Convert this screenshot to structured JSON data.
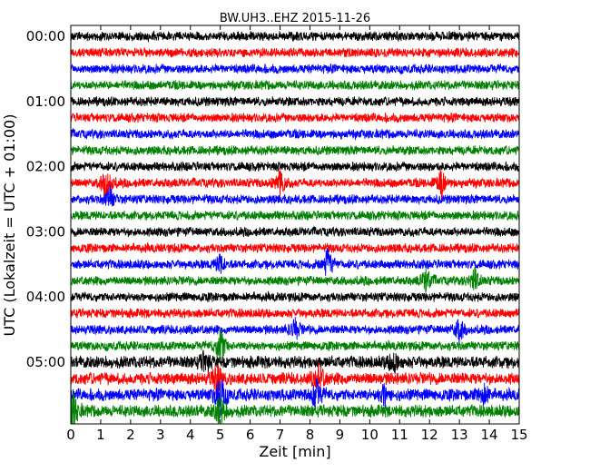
{
  "chart_data": {
    "type": "line",
    "title": "BW.UH3..EHZ 2015-11-26",
    "xlabel": "Zeit  [min]",
    "ylabel": "UTC (Lokalzeit = UTC + 01:00)",
    "xlim": [
      0,
      15
    ],
    "x_ticks": [
      "0",
      "1",
      "2",
      "3",
      "4",
      "5",
      "6",
      "7",
      "8",
      "9",
      "10",
      "11",
      "12",
      "13",
      "14",
      "15"
    ],
    "y_tick_labels": [
      "00:00",
      "01:00",
      "02:00",
      "03:00",
      "04:00",
      "05:00"
    ],
    "trace_minutes_per_line": 15,
    "trace_count": 24,
    "trace_colors": [
      "#000000",
      "#ff0000",
      "#0000ff",
      "#008000"
    ],
    "events": [
      {
        "trace": 9,
        "minute": 1.2,
        "amp": 3.5
      },
      {
        "trace": 9,
        "minute": 7.0,
        "amp": 2.5
      },
      {
        "trace": 9,
        "minute": 12.4,
        "amp": 2.5
      },
      {
        "trace": 10,
        "minute": 1.3,
        "amp": 2.0
      },
      {
        "trace": 14,
        "minute": 8.6,
        "amp": 3.0
      },
      {
        "trace": 14,
        "minute": 5.0,
        "amp": 1.8
      },
      {
        "trace": 15,
        "minute": 11.9,
        "amp": 2.5
      },
      {
        "trace": 15,
        "minute": 13.5,
        "amp": 2.2
      },
      {
        "trace": 18,
        "minute": 7.5,
        "amp": 2.0
      },
      {
        "trace": 18,
        "minute": 13.0,
        "amp": 2.2
      },
      {
        "trace": 19,
        "minute": 5.0,
        "amp": 3.5
      },
      {
        "trace": 20,
        "minute": 4.5,
        "amp": 2.0
      },
      {
        "trace": 20,
        "minute": 10.8,
        "amp": 2.0
      },
      {
        "trace": 21,
        "minute": 4.9,
        "amp": 2.5
      },
      {
        "trace": 21,
        "minute": 8.3,
        "amp": 2.5
      },
      {
        "trace": 22,
        "minute": 5.0,
        "amp": 4.5
      },
      {
        "trace": 22,
        "minute": 8.2,
        "amp": 3.0
      },
      {
        "trace": 22,
        "minute": 10.5,
        "amp": 2.0
      },
      {
        "trace": 22,
        "minute": 13.8,
        "amp": 2.0
      },
      {
        "trace": 23,
        "minute": 0.1,
        "amp": 3.0
      },
      {
        "trace": 23,
        "minute": 5.0,
        "amp": 3.0
      }
    ]
  }
}
